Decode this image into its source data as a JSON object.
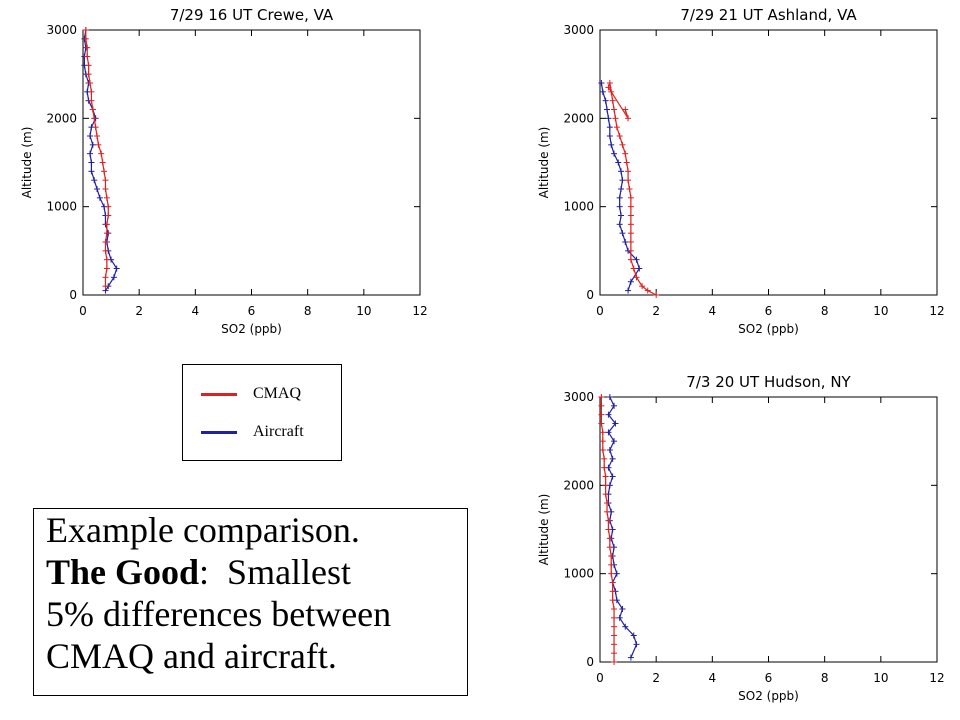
{
  "colors": {
    "cmaq": "#dd2020",
    "aircraft": "#2020a0"
  },
  "legend": {
    "cmaq_label": "CMAQ",
    "aircraft_label": "Aircraft"
  },
  "caption": {
    "line1": "Example comparison.",
    "bold_label": "The Good",
    "line2_rest": ":  Smallest",
    "line3": "5% differences between",
    "line4": "CMAQ and aircraft."
  },
  "chart_data": [
    {
      "type": "line",
      "title": "7/29    16 UT Crewe, VA",
      "xlabel": "SO2 (ppb)",
      "ylabel": "Altitude (m)",
      "xlim": [
        0,
        12
      ],
      "ylim": [
        0,
        3000
      ],
      "xticks": [
        0,
        2,
        4,
        6,
        8,
        10,
        12
      ],
      "yticks": [
        0,
        1000,
        2000,
        3000
      ],
      "series": [
        {
          "name": "CMAQ",
          "points": [
            [
              0.8,
              100
            ],
            [
              0.8,
              200
            ],
            [
              0.85,
              300
            ],
            [
              0.85,
              400
            ],
            [
              0.8,
              500
            ],
            [
              0.8,
              600
            ],
            [
              0.85,
              700
            ],
            [
              0.85,
              800
            ],
            [
              0.9,
              900
            ],
            [
              0.9,
              1000
            ],
            [
              0.85,
              1100
            ],
            [
              0.8,
              1200
            ],
            [
              0.8,
              1300
            ],
            [
              0.75,
              1400
            ],
            [
              0.7,
              1500
            ],
            [
              0.65,
              1600
            ],
            [
              0.55,
              1700
            ],
            [
              0.5,
              1800
            ],
            [
              0.45,
              1900
            ],
            [
              0.4,
              2000
            ],
            [
              0.35,
              2100
            ],
            [
              0.3,
              2200
            ],
            [
              0.3,
              2300
            ],
            [
              0.25,
              2400
            ],
            [
              0.2,
              2500
            ],
            [
              0.2,
              2600
            ],
            [
              0.15,
              2700
            ],
            [
              0.15,
              2800
            ],
            [
              0.1,
              2900
            ],
            [
              0.1,
              3000
            ]
          ]
        },
        {
          "name": "Aircraft",
          "points": [
            [
              0.8,
              50
            ],
            [
              0.9,
              100
            ],
            [
              1.1,
              200
            ],
            [
              1.2,
              300
            ],
            [
              1.0,
              400
            ],
            [
              0.9,
              500
            ],
            [
              0.85,
              600
            ],
            [
              0.9,
              700
            ],
            [
              0.8,
              800
            ],
            [
              0.8,
              900
            ],
            [
              0.75,
              1000
            ],
            [
              0.6,
              1100
            ],
            [
              0.5,
              1200
            ],
            [
              0.4,
              1300
            ],
            [
              0.3,
              1400
            ],
            [
              0.3,
              1500
            ],
            [
              0.25,
              1600
            ],
            [
              0.35,
              1700
            ],
            [
              0.25,
              1800
            ],
            [
              0.3,
              1900
            ],
            [
              0.45,
              2000
            ],
            [
              0.35,
              2100
            ],
            [
              0.2,
              2200
            ],
            [
              0.15,
              2300
            ],
            [
              0.2,
              2400
            ],
            [
              0.1,
              2500
            ],
            [
              0.05,
              2600
            ],
            [
              0.05,
              2700
            ],
            [
              0.1,
              2800
            ],
            [
              0.05,
              2900
            ],
            [
              0.1,
              3000
            ]
          ]
        }
      ]
    },
    {
      "type": "line",
      "title": "7/29    21 UT Ashland, VA",
      "xlabel": "SO2 (ppb)",
      "ylabel": "Altitude (m)",
      "xlim": [
        0,
        12
      ],
      "ylim": [
        0,
        3000
      ],
      "xticks": [
        0,
        2,
        4,
        6,
        8,
        10,
        12
      ],
      "yticks": [
        0,
        1000,
        2000,
        3000
      ],
      "series": [
        {
          "name": "CMAQ",
          "points": [
            [
              2.0,
              0
            ],
            [
              1.7,
              50
            ],
            [
              1.5,
              100
            ],
            [
              1.3,
              200
            ],
            [
              1.2,
              300
            ],
            [
              1.1,
              400
            ],
            [
              1.1,
              500
            ],
            [
              1.1,
              600
            ],
            [
              1.1,
              700
            ],
            [
              1.1,
              800
            ],
            [
              1.1,
              900
            ],
            [
              1.1,
              1000
            ],
            [
              1.1,
              1100
            ],
            [
              1.05,
              1200
            ],
            [
              1.0,
              1300
            ],
            [
              1.0,
              1400
            ],
            [
              0.95,
              1500
            ],
            [
              0.9,
              1600
            ],
            [
              0.8,
              1700
            ],
            [
              0.7,
              1800
            ],
            [
              0.6,
              1900
            ],
            [
              0.55,
              2000
            ],
            [
              0.5,
              2100
            ],
            [
              0.45,
              2200
            ],
            [
              0.4,
              2300
            ],
            [
              0.35,
              2400
            ],
            [
              0.3,
              2350
            ],
            [
              1.0,
              2000
            ],
            [
              0.9,
              2100
            ]
          ]
        },
        {
          "name": "Aircraft",
          "points": [
            [
              1.0,
              50
            ],
            [
              1.1,
              150
            ],
            [
              1.4,
              300
            ],
            [
              1.3,
              400
            ],
            [
              1.0,
              500
            ],
            [
              0.9,
              600
            ],
            [
              0.8,
              700
            ],
            [
              0.7,
              800
            ],
            [
              0.75,
              900
            ],
            [
              0.7,
              1000
            ],
            [
              0.7,
              1100
            ],
            [
              0.75,
              1200
            ],
            [
              0.8,
              1300
            ],
            [
              0.75,
              1400
            ],
            [
              0.65,
              1500
            ],
            [
              0.5,
              1600
            ],
            [
              0.4,
              1700
            ],
            [
              0.35,
              1800
            ],
            [
              0.35,
              1900
            ],
            [
              0.3,
              2000
            ],
            [
              0.25,
              2100
            ],
            [
              0.2,
              2200
            ],
            [
              0.1,
              2300
            ],
            [
              0.05,
              2400
            ]
          ]
        }
      ]
    },
    {
      "type": "line",
      "title": "7/3    20 UT Hudson, NY",
      "xlabel": "SO2 (ppb)",
      "ylabel": "Altitude (m)",
      "xlim": [
        0,
        12
      ],
      "ylim": [
        0,
        3000
      ],
      "xticks": [
        0,
        2,
        4,
        6,
        8,
        10,
        12
      ],
      "yticks": [
        0,
        1000,
        2000,
        3000
      ],
      "series": [
        {
          "name": "CMAQ",
          "points": [
            [
              0.5,
              0
            ],
            [
              0.5,
              100
            ],
            [
              0.5,
              200
            ],
            [
              0.5,
              300
            ],
            [
              0.5,
              400
            ],
            [
              0.5,
              500
            ],
            [
              0.5,
              600
            ],
            [
              0.45,
              700
            ],
            [
              0.45,
              800
            ],
            [
              0.45,
              900
            ],
            [
              0.4,
              1000
            ],
            [
              0.4,
              1100
            ],
            [
              0.4,
              1200
            ],
            [
              0.35,
              1300
            ],
            [
              0.35,
              1400
            ],
            [
              0.3,
              1500
            ],
            [
              0.3,
              1600
            ],
            [
              0.25,
              1700
            ],
            [
              0.25,
              1800
            ],
            [
              0.2,
              1900
            ],
            [
              0.2,
              2000
            ],
            [
              0.2,
              2100
            ],
            [
              0.15,
              2200
            ],
            [
              0.15,
              2300
            ],
            [
              0.1,
              2400
            ],
            [
              0.1,
              2500
            ],
            [
              0.1,
              2600
            ],
            [
              0.05,
              2700
            ],
            [
              0.05,
              2800
            ],
            [
              0.05,
              2900
            ],
            [
              0.05,
              3000
            ]
          ]
        },
        {
          "name": "Aircraft",
          "points": [
            [
              1.1,
              50
            ],
            [
              1.3,
              200
            ],
            [
              1.2,
              300
            ],
            [
              0.9,
              400
            ],
            [
              0.7,
              500
            ],
            [
              0.8,
              600
            ],
            [
              0.6,
              700
            ],
            [
              0.55,
              800
            ],
            [
              0.45,
              900
            ],
            [
              0.6,
              1000
            ],
            [
              0.5,
              1100
            ],
            [
              0.45,
              1200
            ],
            [
              0.5,
              1300
            ],
            [
              0.4,
              1400
            ],
            [
              0.45,
              1500
            ],
            [
              0.35,
              1600
            ],
            [
              0.4,
              1700
            ],
            [
              0.3,
              1800
            ],
            [
              0.3,
              1900
            ],
            [
              0.35,
              2000
            ],
            [
              0.45,
              2100
            ],
            [
              0.3,
              2200
            ],
            [
              0.45,
              2300
            ],
            [
              0.35,
              2400
            ],
            [
              0.5,
              2500
            ],
            [
              0.3,
              2600
            ],
            [
              0.55,
              2700
            ],
            [
              0.3,
              2800
            ],
            [
              0.5,
              2900
            ],
            [
              0.35,
              3000
            ]
          ]
        }
      ]
    }
  ]
}
